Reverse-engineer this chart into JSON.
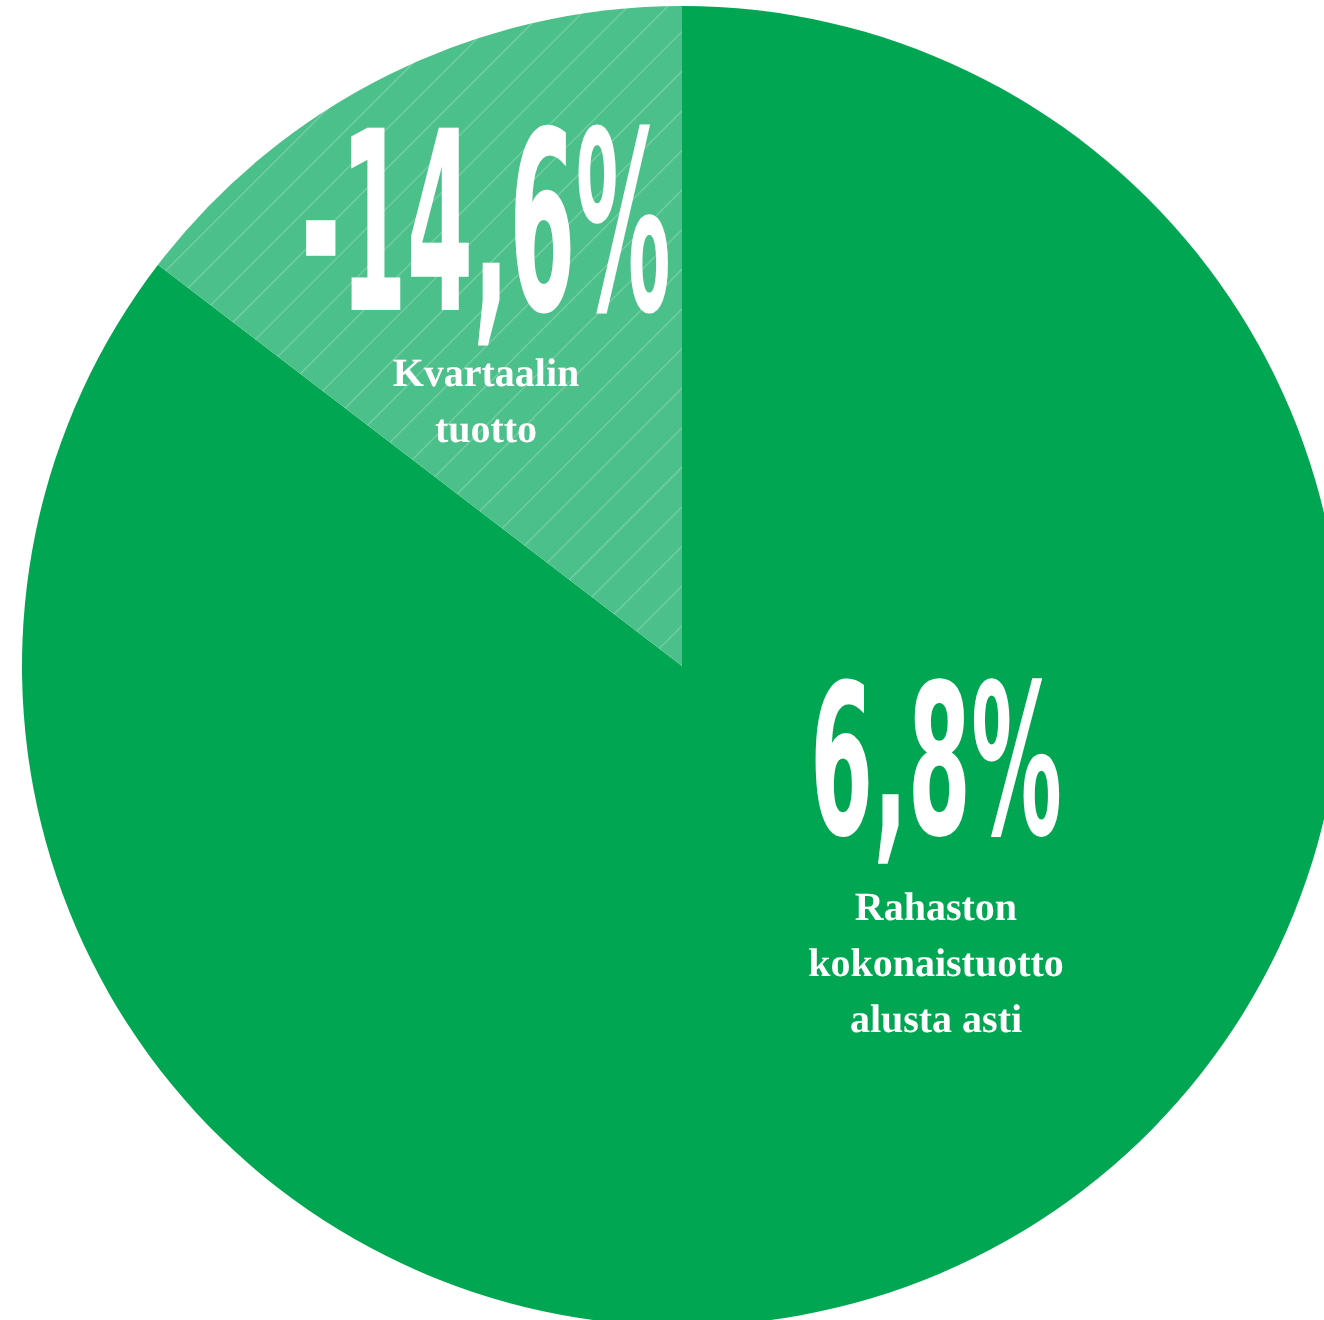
{
  "chart_data": {
    "type": "other",
    "categories": [
      "Kvartaalin tuotto",
      "Rahaston kokonaistuotto alusta asti"
    ],
    "values": [
      -14.6,
      6.8
    ],
    "value_labels": [
      "-14,6%",
      "6,8%"
    ],
    "colors": [
      "#4cc08a",
      "#00a651"
    ]
  }
}
